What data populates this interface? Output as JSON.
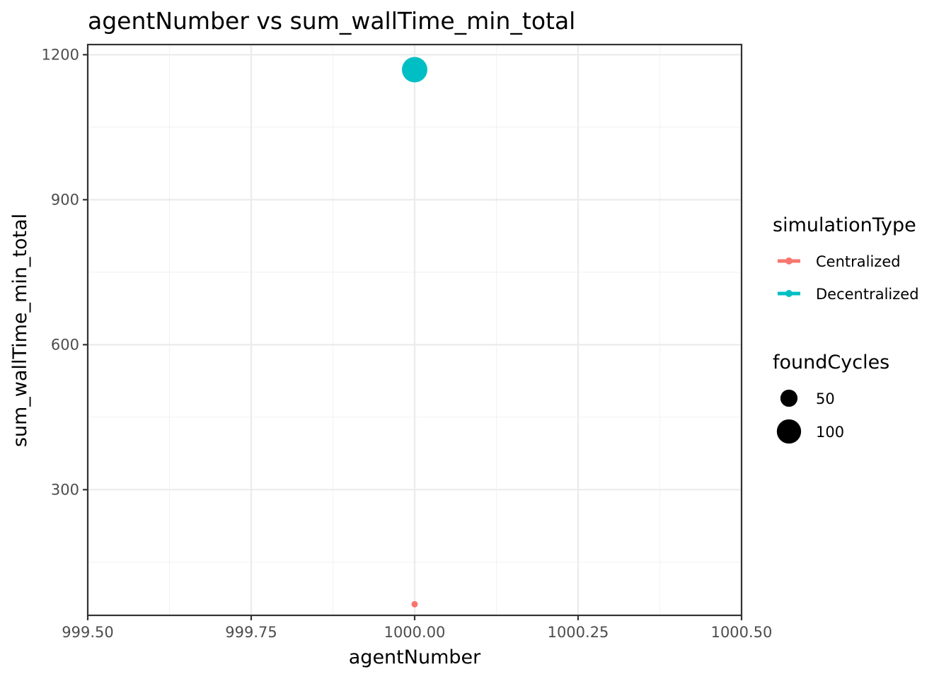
{
  "chart_data": {
    "type": "scatter",
    "title": "agentNumber  vs  sum_wallTime_min_total",
    "xlabel": "agentNumber",
    "ylabel": "sum_wallTime_min_total",
    "xlim": [
      999.5,
      1000.5
    ],
    "ylim": [
      40,
      1221
    ],
    "x_ticks": [
      999.5,
      999.75,
      1000.0,
      1000.25,
      1000.5
    ],
    "x_tick_labels": [
      "999.50",
      "999.75",
      "1000.00",
      "1000.25",
      "1000.50"
    ],
    "y_ticks": [
      300,
      600,
      900,
      1200
    ],
    "y_tick_labels": [
      "300",
      "600",
      "900",
      "1200"
    ],
    "grid": true,
    "legend_placement": "right",
    "color_legend": {
      "title": "simulationType",
      "entries": [
        {
          "label": "Centralized",
          "color": "#F8766D"
        },
        {
          "label": "Decentralized",
          "color": "#00BFC4"
        }
      ]
    },
    "size_legend": {
      "title": "foundCycles",
      "entries": [
        {
          "label": "50",
          "value": 50
        },
        {
          "label": "100",
          "value": 100
        }
      ]
    },
    "series": [
      {
        "name": "Centralized",
        "color": "#F8766D",
        "points": [
          {
            "x": 1000.0,
            "y": 63,
            "foundCycles": 5
          }
        ]
      },
      {
        "name": "Decentralized",
        "color": "#00BFC4",
        "points": [
          {
            "x": 1000.0,
            "y": 1169,
            "foundCycles": 110
          }
        ]
      }
    ]
  }
}
